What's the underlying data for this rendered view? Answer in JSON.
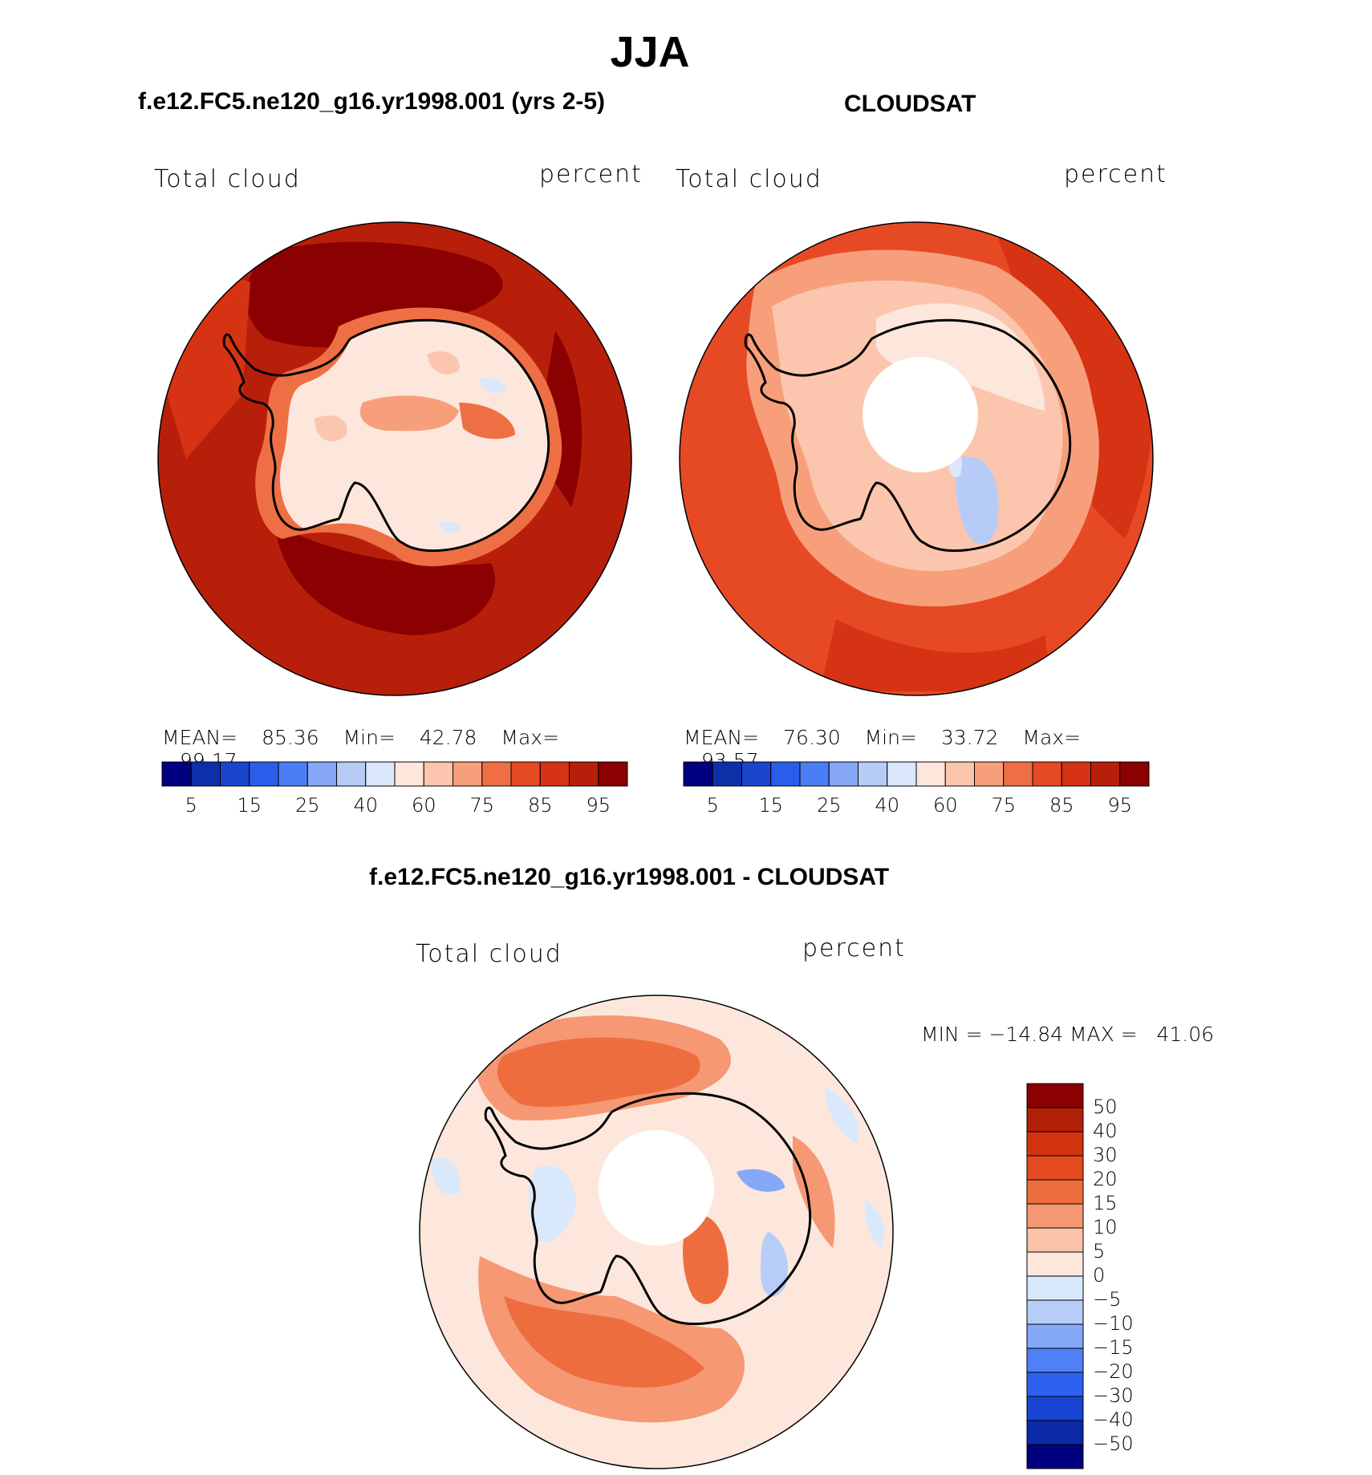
{
  "figure": {
    "title": "JJA",
    "colors": {
      "abs_scale": [
        "#000080",
        "#0d2fa8",
        "#1a46cc",
        "#2a5eea",
        "#4b7ef4",
        "#86a7f6",
        "#b6ccf7",
        "#dbe8fb",
        "#fde7dc",
        "#fbc6ad",
        "#f79f7b",
        "#ef6f45",
        "#e64a24",
        "#d53313",
        "#b81f0b",
        "#8b0000"
      ],
      "diff_scale": [
        "#000080",
        "#0a2aa8",
        "#1845d4",
        "#2d62f0",
        "#4f80f5",
        "#85a8f7",
        "#b7cdf8",
        "#dae8fb",
        "#fde7dc",
        "#fbc4aa",
        "#f59873",
        "#ee6d3f",
        "#e44a1f",
        "#d2330f",
        "#b3200a",
        "#8b0000"
      ],
      "continent_outline": "#000000"
    }
  },
  "panels": {
    "model": {
      "title": "f.e12.FC5.ne120_g16.yr1998.001 (yrs 2-5)",
      "left_label": "Total cloud",
      "right_label": "percent",
      "mean_label": "MEAN=",
      "mean": "85.36",
      "min_label": "Min=",
      "min": "42.78",
      "max_label": "Max=",
      "max": "99.17"
    },
    "obs": {
      "title": "CLOUDSAT",
      "left_label": "Total cloud",
      "right_label": "percent",
      "mean_label": "MEAN=",
      "mean": "76.30",
      "min_label": "Min=",
      "min": "33.72",
      "max_label": "Max=",
      "max": "93.57"
    },
    "diff": {
      "title": "f.e12.FC5.ne120_g16.yr1998.001 - CLOUDSAT",
      "left_label": "Total cloud",
      "right_label": "percent",
      "minmax": "MIN = −14.84 MAX =   41.06"
    }
  },
  "colorbars": {
    "abs_ticks": [
      "5",
      "15",
      "25",
      "40",
      "60",
      "75",
      "85",
      "95"
    ],
    "diff_ticks": [
      "50",
      "40",
      "30",
      "20",
      "15",
      "10",
      "5",
      "0",
      "−5",
      "−10",
      "−15",
      "−20",
      "−30",
      "−40",
      "−50"
    ]
  }
}
